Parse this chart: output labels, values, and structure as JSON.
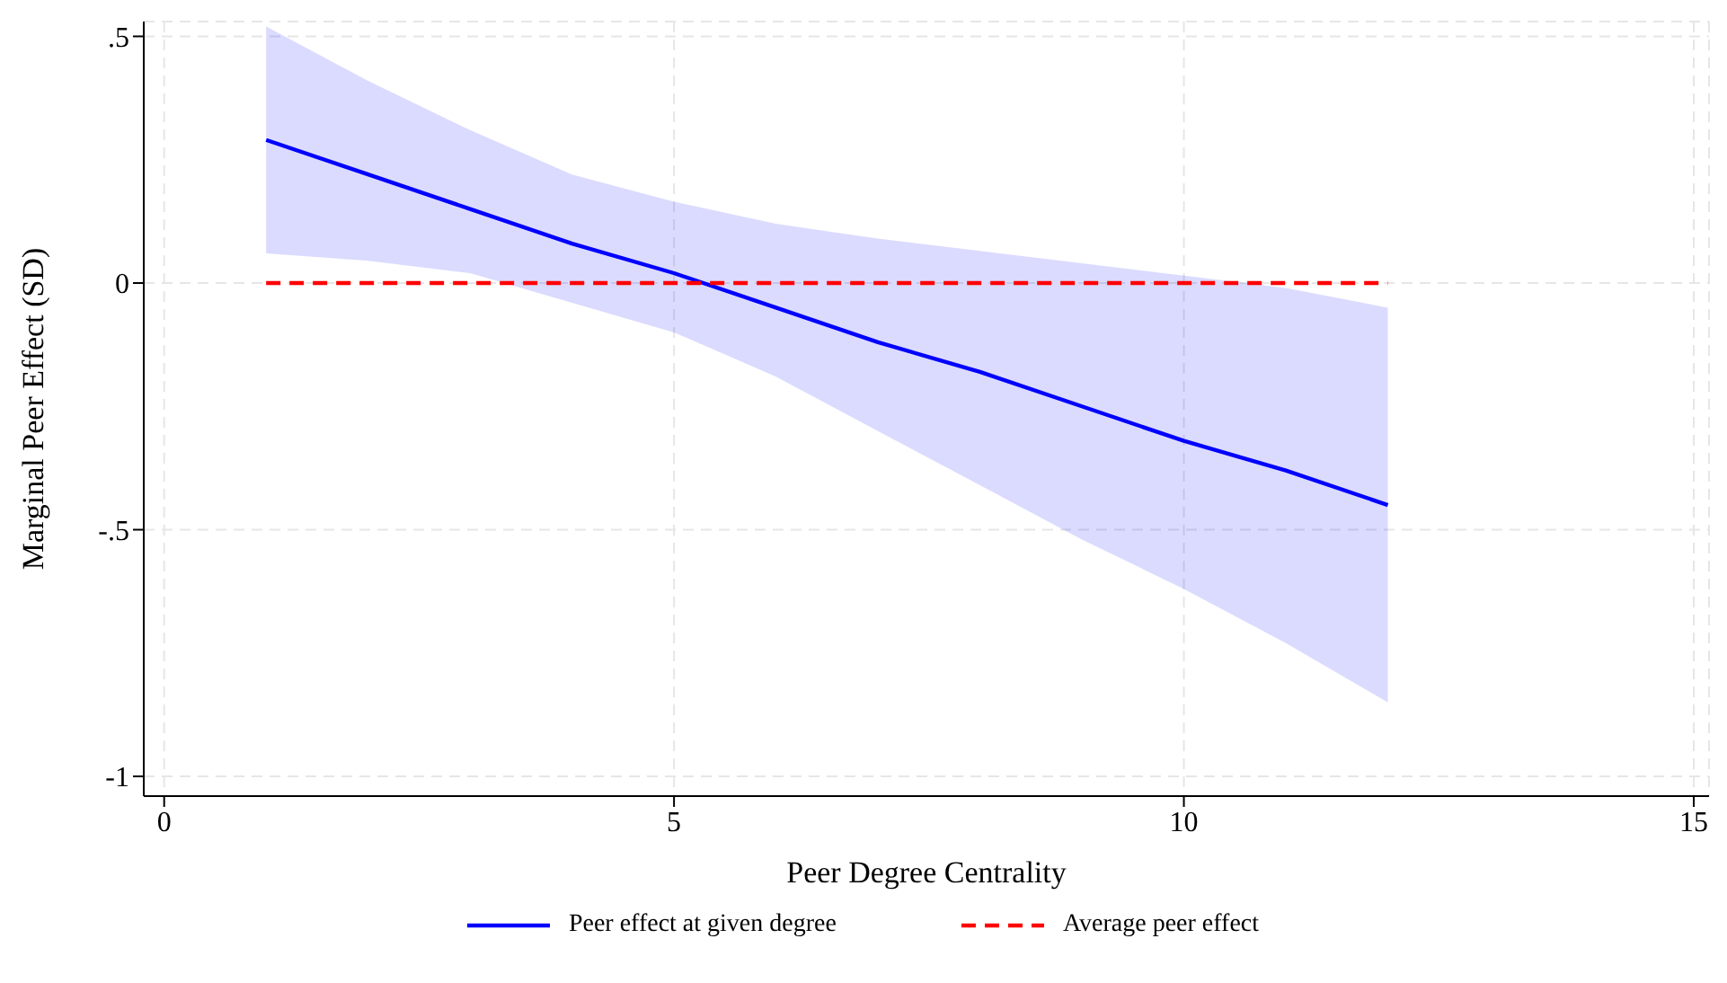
{
  "chart_data": {
    "type": "line",
    "xlabel": "Peer Degree Centrality",
    "ylabel": "Marginal Peer Effect (SD)",
    "xlim": [
      -0.2,
      15.15
    ],
    "xticks": [
      0,
      5,
      10,
      15
    ],
    "ylim": [
      -1.04,
      0.53
    ],
    "yticks": [
      {
        "value": 0.5,
        "label": ".5"
      },
      0,
      {
        "value": -0.5,
        "label": "-.5"
      },
      -1
    ],
    "grid": true,
    "legend": "bottom",
    "series": [
      {
        "name": "Peer effect at given degree",
        "color": "#0000ff",
        "line_style": "solid",
        "x": [
          1,
          2,
          3,
          4,
          5,
          6,
          7,
          8,
          9,
          10,
          11,
          12
        ],
        "values": [
          0.29,
          0.22,
          0.15,
          0.08,
          0.02,
          -0.05,
          -0.12,
          -0.18,
          -0.25,
          -0.32,
          -0.38,
          -0.45
        ],
        "lower": [
          0.06,
          0.045,
          0.02,
          -0.04,
          -0.1,
          -0.19,
          -0.3,
          -0.41,
          -0.52,
          -0.62,
          -0.73,
          -0.85
        ],
        "upper": [
          0.52,
          0.41,
          0.31,
          0.22,
          0.165,
          0.12,
          0.09,
          0.065,
          0.04,
          0.015,
          -0.01,
          -0.05
        ]
      },
      {
        "name": "Average peer effect",
        "color": "#ff0000",
        "line_style": "dashed",
        "x": [
          1,
          12
        ],
        "values": [
          0,
          0
        ]
      }
    ]
  }
}
